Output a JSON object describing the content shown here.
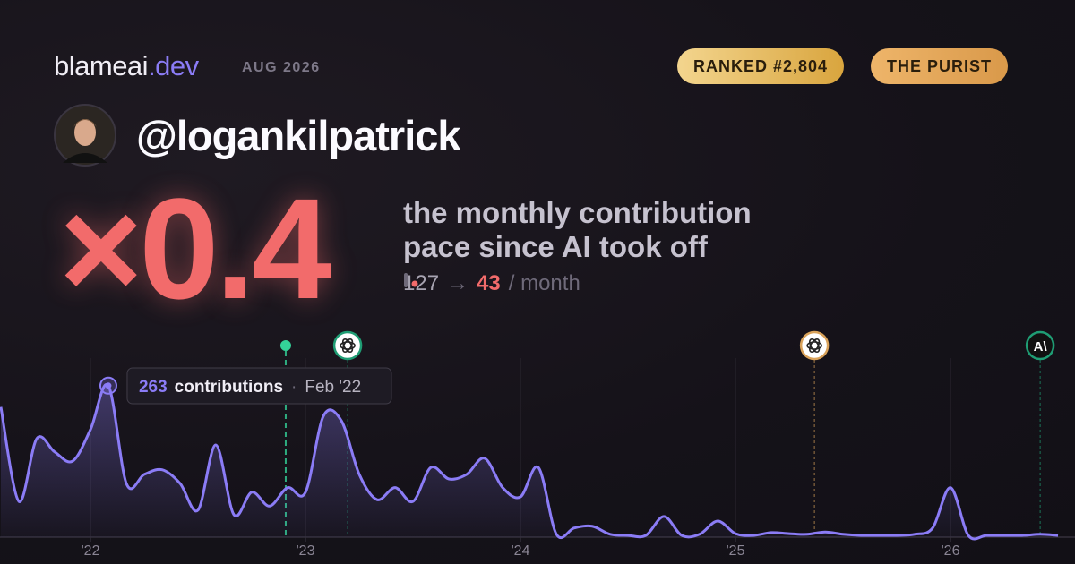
{
  "header": {
    "brand": "blameai",
    "brand_suffix": ".dev",
    "date": "AUG 2026",
    "badges": [
      "RANKED #2,804",
      "THE PURIST"
    ]
  },
  "profile": {
    "handle": "@logankilpatrick"
  },
  "summary": {
    "multiplier": "×0.4",
    "caption": [
      "the monthly contribution",
      "pace since AI took off"
    ],
    "before": 127,
    "arrow": "→",
    "after": 43,
    "unit": "/ month"
  },
  "chart_data": {
    "type": "line",
    "series": [
      {
        "color": "#8b7cf6",
        "x": [
          2021.583,
          2021.667,
          2021.75,
          2021.833,
          2021.917,
          2022,
          2022.083,
          2022.167,
          2022.25,
          2022.333,
          2022.417,
          2022.5,
          2022.583,
          2022.667,
          2022.75,
          2022.833,
          2022.917,
          2023,
          2023.083,
          2023.167,
          2023.25,
          2023.333,
          2023.417,
          2023.5,
          2023.583,
          2023.667,
          2023.75,
          2023.833,
          2023.917,
          2024,
          2024.083,
          2024.167,
          2024.25,
          2024.333,
          2024.417,
          2024.5,
          2024.583,
          2024.667,
          2024.75,
          2024.833,
          2024.917,
          2025,
          2025.083,
          2025.167,
          2025.25,
          2025.333,
          2025.417,
          2025.5,
          2025.583,
          2025.667,
          2025.75,
          2025.833,
          2025.917,
          2026,
          2026.083,
          2026.167,
          2026.25,
          2026.333,
          2026.417,
          2026.5
        ],
        "values": [
          226,
          62,
          171,
          148,
          132,
          187,
          263,
          93,
          109,
          117,
          93,
          47,
          160,
          39,
          78,
          54,
          86,
          78,
          210,
          202,
          109,
          65,
          86,
          62,
          121,
          101,
          109,
          137,
          86,
          70,
          121,
          5,
          16,
          19,
          5,
          3,
          3,
          36,
          3,
          5,
          28,
          6,
          3,
          8,
          6,
          5,
          9,
          5,
          3,
          3,
          3,
          5,
          16,
          86,
          3,
          3,
          3,
          3,
          5,
          3
        ]
      }
    ],
    "xlim": [
      2021.579,
      2026.579
    ],
    "ylim": [
      0,
      300
    ],
    "xticks": [
      {
        "value": 2022,
        "label": "'22"
      },
      {
        "value": 2023,
        "label": "'23"
      },
      {
        "value": 2024,
        "label": "'24"
      },
      {
        "value": 2025,
        "label": "'25"
      },
      {
        "value": 2026,
        "label": "'26"
      }
    ],
    "grid": true,
    "tooltip": {
      "index": 6,
      "text": "contributions",
      "separator": "·",
      "date": "Feb '22"
    },
    "events": [
      {
        "x": 2022.908,
        "shape": "dot",
        "color": "#34d399"
      },
      {
        "x": 2023.196,
        "shape": "badge",
        "color": "#1f9d74",
        "fill": "#ffffff"
      },
      {
        "x": 2025.367,
        "shape": "badge",
        "color": "#d9a25a",
        "fill": "#ffffff"
      },
      {
        "x": 2026.417,
        "shape": "badge",
        "color": "#1f9d74",
        "fill": "#111111",
        "label": "A\\"
      }
    ]
  }
}
